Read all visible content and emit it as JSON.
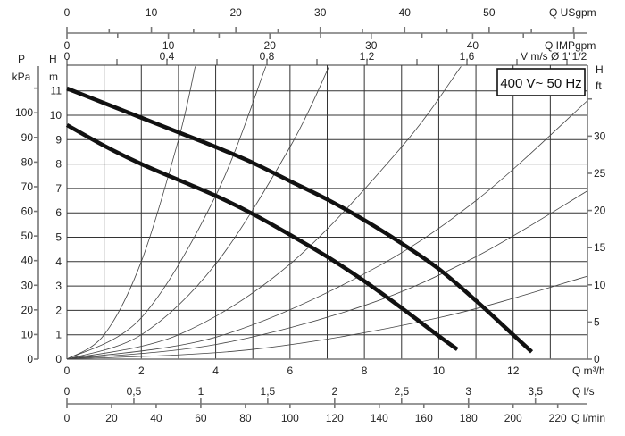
{
  "chart_data": {
    "type": "line",
    "legend_box": "400 V~ 50 Hz",
    "x_axis": {
      "label": "Q m³/h",
      "range": [
        0,
        14
      ],
      "ticks": [
        0,
        2,
        4,
        6,
        8,
        10,
        12
      ]
    },
    "y_axis_left": {
      "label_top": "H",
      "label_unit": "m",
      "range": [
        0,
        12
      ],
      "ticks": [
        0,
        1,
        2,
        3,
        4,
        5,
        6,
        7,
        8,
        9,
        10,
        11
      ]
    },
    "p_axis": {
      "label_top": "P",
      "label_unit": "kPa",
      "ticks": [
        0,
        10,
        20,
        30,
        40,
        50,
        60,
        70,
        80,
        90,
        100
      ]
    },
    "y_axis_right": {
      "label_top": "H",
      "label_unit": "ft",
      "ticks": [
        0,
        5,
        10,
        15,
        20,
        25,
        30
      ]
    },
    "top_axes": [
      {
        "label": "Q USgpm",
        "ticks": [
          0,
          10,
          20,
          30,
          40,
          50
        ]
      },
      {
        "label": "Q IMPgpm",
        "ticks": [
          0,
          10,
          20,
          30,
          40
        ]
      },
      {
        "label": "V m/s Ø 1\"1/2",
        "ticks": [
          "0",
          "0,4",
          "0,8",
          "1,2",
          "1,6"
        ]
      }
    ],
    "bottom_axes": [
      {
        "label": "Q l/s",
        "ticks": [
          "0",
          "0,5",
          "1",
          "1,5",
          "2",
          "2,5",
          "3",
          "3,5"
        ]
      },
      {
        "label": "Q l/min",
        "ticks": [
          "0",
          "20",
          "40",
          "60",
          "80",
          "100",
          "120",
          "140",
          "160",
          "180",
          "200",
          "220"
        ]
      }
    ],
    "grid": true,
    "pump_curves": [
      {
        "points": [
          [
            0,
            11.1
          ],
          [
            1,
            10.5
          ],
          [
            2,
            9.9
          ],
          [
            3,
            9.3
          ],
          [
            4,
            8.7
          ],
          [
            5,
            8.05
          ],
          [
            6,
            7.3
          ],
          [
            7,
            6.55
          ],
          [
            8,
            5.7
          ],
          [
            9,
            4.75
          ],
          [
            10,
            3.7
          ],
          [
            11,
            2.4
          ],
          [
            12,
            1.0
          ],
          [
            12.5,
            0.3
          ]
        ]
      },
      {
        "points": [
          [
            0,
            9.6
          ],
          [
            1,
            8.75
          ],
          [
            2,
            8.0
          ],
          [
            3,
            7.35
          ],
          [
            4,
            6.7
          ],
          [
            5,
            5.95
          ],
          [
            6,
            5.1
          ],
          [
            7,
            4.2
          ],
          [
            8,
            3.2
          ],
          [
            9,
            2.1
          ],
          [
            10,
            0.95
          ],
          [
            10.5,
            0.4
          ]
        ]
      }
    ],
    "system_curves": [
      {
        "points": [
          [
            0,
            0
          ],
          [
            1,
            1
          ],
          [
            2,
            4
          ],
          [
            3,
            9
          ],
          [
            3.45,
            12
          ]
        ]
      },
      {
        "points": [
          [
            0,
            0
          ],
          [
            2,
            1.7
          ],
          [
            4,
            6.7
          ],
          [
            5.35,
            12
          ]
        ]
      },
      {
        "points": [
          [
            0,
            0
          ],
          [
            2,
            1
          ],
          [
            4,
            3.9
          ],
          [
            6,
            8.7
          ],
          [
            7.05,
            12
          ]
        ]
      },
      {
        "points": [
          [
            0,
            0
          ],
          [
            3,
            1
          ],
          [
            6,
            3.9
          ],
          [
            9,
            8.7
          ],
          [
            10.6,
            12
          ]
        ]
      },
      {
        "points": [
          [
            0,
            0
          ],
          [
            4,
            0.9
          ],
          [
            8,
            3.5
          ],
          [
            11,
            6.5
          ],
          [
            14,
            10.6
          ]
        ]
      },
      {
        "points": [
          [
            0,
            0
          ],
          [
            4,
            0.6
          ],
          [
            8,
            2.2
          ],
          [
            11,
            4.2
          ],
          [
            14,
            6.9
          ]
        ]
      },
      {
        "points": [
          [
            0,
            0
          ],
          [
            5,
            0.4
          ],
          [
            10,
            1.7
          ],
          [
            14,
            3.4
          ]
        ]
      }
    ]
  }
}
